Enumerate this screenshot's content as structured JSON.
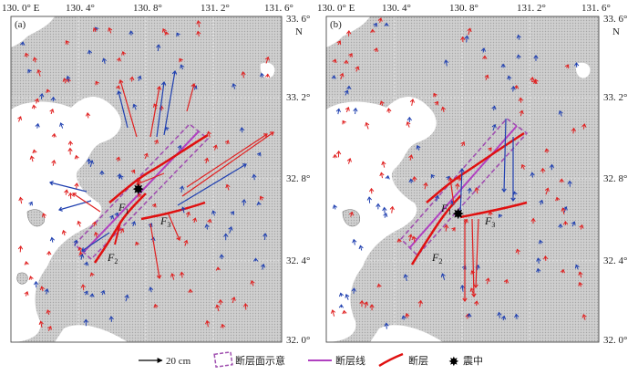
{
  "panels": [
    {
      "label": "(a)",
      "top_ticks": [
        "130. 0° E",
        "130. 4°",
        "130. 8°",
        "131. 2°",
        "131. 6°"
      ],
      "right_ticks": [
        "33. 6°",
        "33. 2°",
        "32. 8°",
        "32. 4°",
        "32. 0°"
      ],
      "north_label": "N",
      "fault_labels": {
        "f1": "F",
        "f1_sub": "1",
        "f2": "F",
        "f2_sub": "2",
        "f3": "F",
        "f3_sub": "3"
      }
    },
    {
      "label": "(b)",
      "top_ticks": [
        "130. 0° E",
        "130. 4°",
        "130. 8°",
        "131. 2°",
        "131. 6°"
      ],
      "right_ticks": [
        "33. 6°",
        "33. 2°",
        "32. 8°",
        "32. 4°",
        "32. 0°"
      ],
      "north_label": "N",
      "fault_labels": {
        "f1": "F",
        "f1_sub": "1",
        "f2": "F",
        "f2_sub": "2",
        "f3": "F",
        "f3_sub": "3"
      }
    }
  ],
  "legend": {
    "scale": "20 cm",
    "fault_plane": "断层面示意",
    "fault_line": "断层线",
    "fault": "断层",
    "epicenter": "震中"
  },
  "colors": {
    "land_fill": "#c8c8c8",
    "sea": "#ffffff",
    "red_vector": "#e02020",
    "blue_vector": "#2040b0",
    "fault_plane": "#a050b0",
    "fault_line": "#b040c0",
    "fault": "#e01010"
  }
}
